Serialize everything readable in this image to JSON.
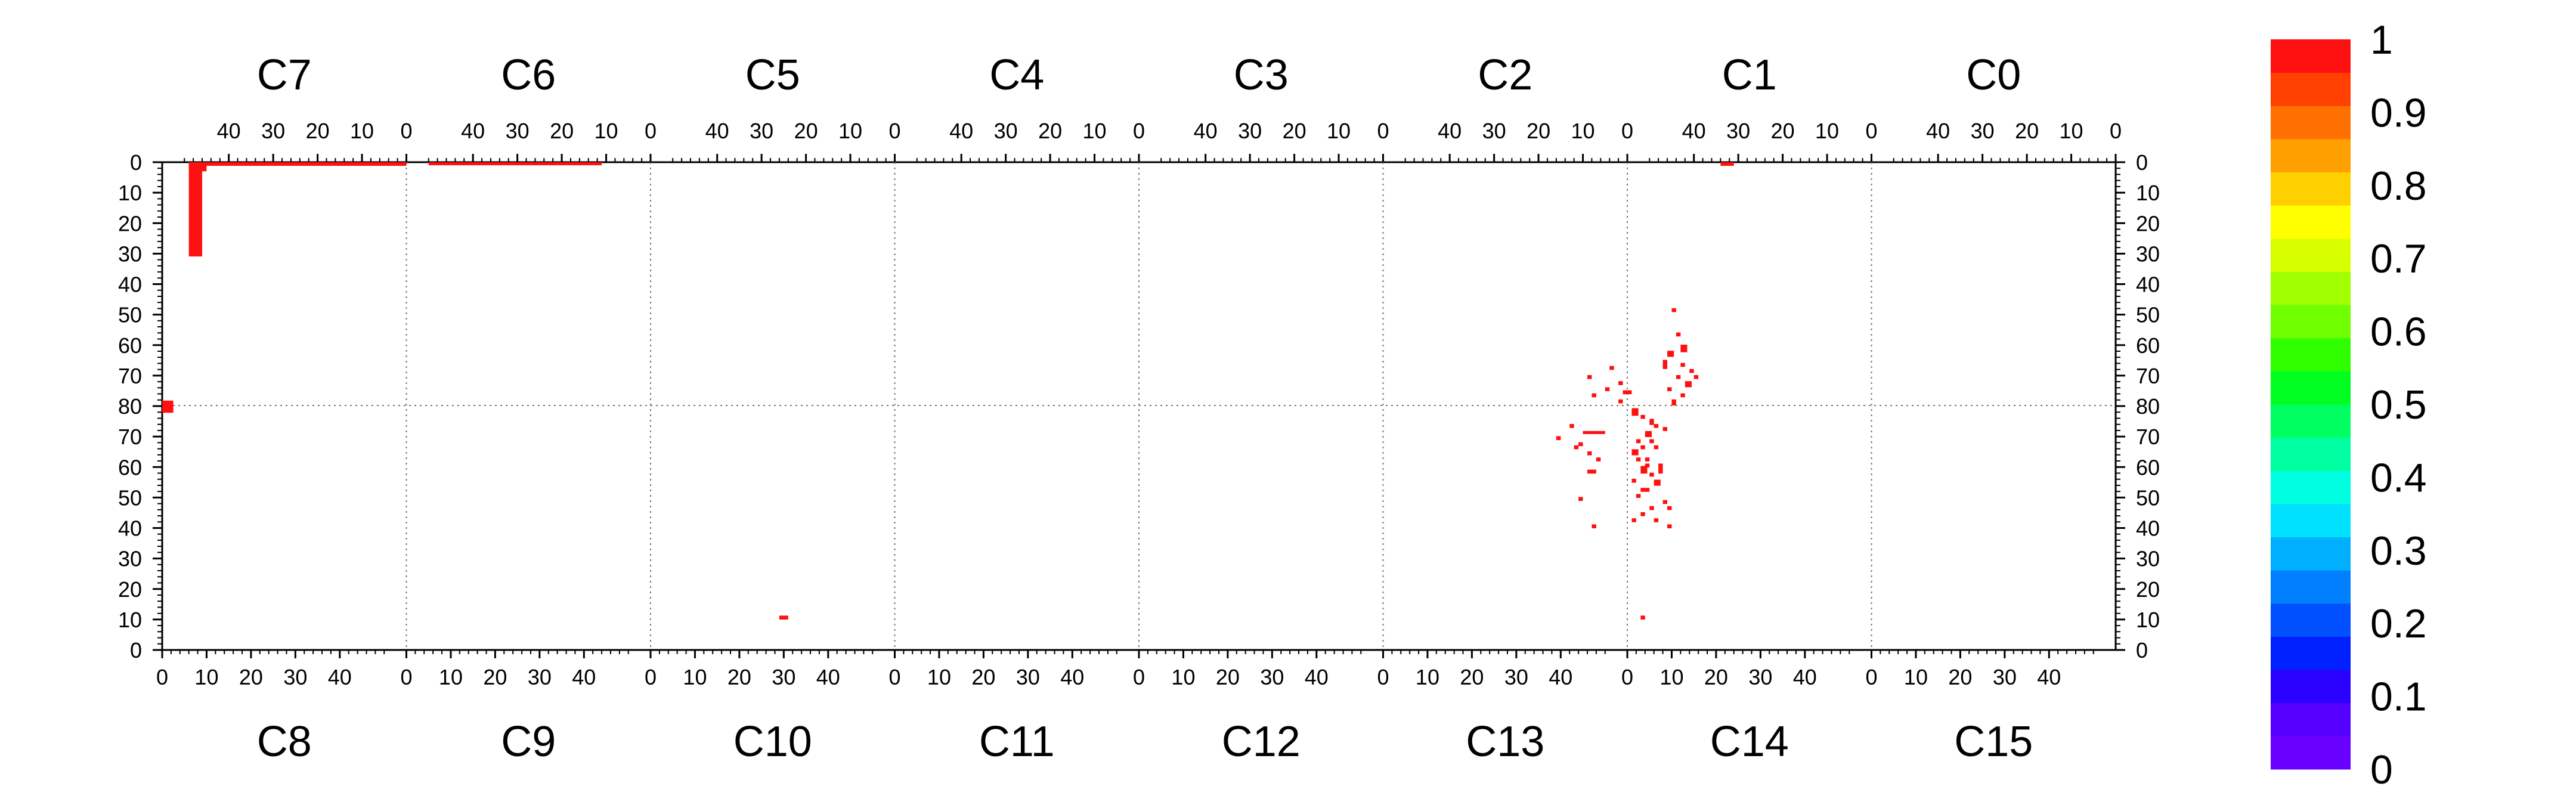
{
  "chart_data": {
    "type": "heatmap",
    "title": "",
    "top_chip_labels": [
      "C7",
      "C6",
      "C5",
      "C4",
      "C3",
      "C2",
      "C1",
      "C0"
    ],
    "bottom_chip_labels": [
      "C8",
      "C9",
      "C10",
      "C11",
      "C12",
      "C13",
      "C14",
      "C15"
    ],
    "top_x_tick_labels": [
      "40",
      "30",
      "20",
      "10",
      "0"
    ],
    "bottom_x_tick_labels": [
      "0",
      "10",
      "20",
      "30",
      "40"
    ],
    "y_tick_labels_left": [
      "0",
      "10",
      "20",
      "30",
      "40",
      "50",
      "60",
      "70",
      "80",
      "70",
      "60",
      "50",
      "40",
      "30",
      "20",
      "10",
      "0"
    ],
    "y_tick_labels_right": [
      "0",
      "10",
      "20",
      "30",
      "40",
      "50",
      "60",
      "70",
      "80",
      "70",
      "60",
      "50",
      "40",
      "30",
      "20",
      "10",
      "0"
    ],
    "colorbar": {
      "ticks": [
        "0",
        "0.1",
        "0.2",
        "0.3",
        "0.4",
        "0.5",
        "0.6",
        "0.7",
        "0.8",
        "0.9",
        "1"
      ],
      "colors": [
        "#6a00ff",
        "#5500ff",
        "#2a00ff",
        "#0020ff",
        "#0050ff",
        "#0080ff",
        "#00b0ff",
        "#00e0ff",
        "#00ffe0",
        "#00ffa0",
        "#00ff60",
        "#00ff20",
        "#30ff00",
        "#70ff00",
        "#a0ff00",
        "#d8ff00",
        "#ffff00",
        "#ffd000",
        "#ffa000",
        "#ff7000",
        "#ff4000",
        "#ff1010"
      ]
    },
    "hit_color": "#ff1010",
    "pixels_note_units": "chip column (0-50), row (0-80, 0 at outer edge)",
    "hits": [
      {
        "chip": "C7",
        "col": 49,
        "row": 0,
        "w": 49,
        "h": 1.2
      },
      {
        "chip": "C6",
        "col": 50,
        "row": 0,
        "w": 37,
        "h": 1.0
      },
      {
        "chip": "C6",
        "col": 13,
        "row": 0,
        "w": 2,
        "h": 1.0
      },
      {
        "chip": "C7",
        "col": 49,
        "row": 0,
        "w": 3,
        "h": 31
      },
      {
        "chip": "C7",
        "col": 47,
        "row": 1,
        "w": 2,
        "h": 2
      },
      {
        "chip": "C8",
        "col": 0,
        "row": 78,
        "w": 2.5,
        "h": 4
      },
      {
        "chip": "C1",
        "col": 34,
        "row": 0,
        "w": 3,
        "h": 1.2
      },
      {
        "chip": "C10",
        "col": 29,
        "row": 10,
        "w": 2,
        "h": 1.3
      },
      {
        "chip": "C14",
        "col": 3,
        "row": 10,
        "w": 1,
        "h": 1.3
      },
      {
        "chip": "C1",
        "col": 45,
        "row": 48,
        "w": 1,
        "h": 1.3
      },
      {
        "chip": "C1",
        "col": 44,
        "row": 56,
        "w": 1,
        "h": 1.3
      },
      {
        "chip": "C1",
        "col": 43,
        "row": 60,
        "w": 1.5,
        "h": 2.5
      },
      {
        "chip": "C1",
        "col": 46,
        "row": 62,
        "w": 1.5,
        "h": 2
      },
      {
        "chip": "C1",
        "col": 43,
        "row": 66,
        "w": 1,
        "h": 1.3
      },
      {
        "chip": "C1",
        "col": 47,
        "row": 65,
        "w": 1,
        "h": 3
      },
      {
        "chip": "C1",
        "col": 41,
        "row": 68,
        "w": 1,
        "h": 1.3
      },
      {
        "chip": "C1",
        "col": 44,
        "row": 70,
        "w": 1,
        "h": 1.3
      },
      {
        "chip": "C1",
        "col": 42,
        "row": 72,
        "w": 1.5,
        "h": 2
      },
      {
        "chip": "C1",
        "col": 46,
        "row": 74,
        "w": 1,
        "h": 1.3
      },
      {
        "chip": "C1",
        "col": 43,
        "row": 76,
        "w": 1,
        "h": 1.3
      },
      {
        "chip": "C1",
        "col": 45,
        "row": 78,
        "w": 1,
        "h": 2
      },
      {
        "chip": "C1",
        "col": 40,
        "row": 70,
        "w": 1,
        "h": 1.3
      },
      {
        "chip": "C2",
        "col": 4,
        "row": 67,
        "w": 1,
        "h": 1.3
      },
      {
        "chip": "C2",
        "col": 1,
        "row": 75,
        "w": 2,
        "h": 1.3
      },
      {
        "chip": "C2",
        "col": 2,
        "row": 78,
        "w": 1,
        "h": 1.3
      },
      {
        "chip": "C2",
        "col": 9,
        "row": 70,
        "w": 1,
        "h": 1.3
      },
      {
        "chip": "C2",
        "col": 5,
        "row": 74,
        "w": 1,
        "h": 1.3
      },
      {
        "chip": "C2",
        "col": 8,
        "row": 76,
        "w": 1,
        "h": 1.3
      },
      {
        "chip": "C2",
        "col": 2,
        "row": 72,
        "w": 1,
        "h": 1.3
      },
      {
        "chip": "C14",
        "col": 1,
        "row": 77,
        "w": 1.5,
        "h": 2.5
      },
      {
        "chip": "C14",
        "col": 3,
        "row": 76,
        "w": 1,
        "h": 1.3
      },
      {
        "chip": "C14",
        "col": 5,
        "row": 74,
        "w": 1,
        "h": 2
      },
      {
        "chip": "C14",
        "col": 8,
        "row": 72,
        "w": 1,
        "h": 1.3
      },
      {
        "chip": "C14",
        "col": 4,
        "row": 70,
        "w": 1.5,
        "h": 2
      },
      {
        "chip": "C14",
        "col": 2,
        "row": 68,
        "w": 1,
        "h": 1.3
      },
      {
        "chip": "C14",
        "col": 6,
        "row": 66,
        "w": 1,
        "h": 1.3
      },
      {
        "chip": "C14",
        "col": 1,
        "row": 64,
        "w": 1.5,
        "h": 2
      },
      {
        "chip": "C14",
        "col": 4,
        "row": 62,
        "w": 1,
        "h": 1.3
      },
      {
        "chip": "C14",
        "col": 7,
        "row": 60,
        "w": 1,
        "h": 1.3
      },
      {
        "chip": "C14",
        "col": 3,
        "row": 58,
        "w": 1.5,
        "h": 2.5
      },
      {
        "chip": "C14",
        "col": 5,
        "row": 57,
        "w": 1,
        "h": 1.3
      },
      {
        "chip": "C14",
        "col": 1,
        "row": 55,
        "w": 1,
        "h": 1.3
      },
      {
        "chip": "C14",
        "col": 6,
        "row": 54,
        "w": 1.5,
        "h": 2
      },
      {
        "chip": "C14",
        "col": 4,
        "row": 52,
        "w": 1,
        "h": 1.3
      },
      {
        "chip": "C14",
        "col": 2,
        "row": 50,
        "w": 1,
        "h": 1.3
      },
      {
        "chip": "C14",
        "col": 8,
        "row": 48,
        "w": 1,
        "h": 1.3
      },
      {
        "chip": "C14",
        "col": 5,
        "row": 46,
        "w": 1,
        "h": 1.3
      },
      {
        "chip": "C14",
        "col": 3,
        "row": 44,
        "w": 1,
        "h": 1.3
      },
      {
        "chip": "C14",
        "col": 6,
        "row": 42,
        "w": 1,
        "h": 1.3
      },
      {
        "chip": "C14",
        "col": 9,
        "row": 40,
        "w": 1,
        "h": 1.3
      },
      {
        "chip": "C14",
        "col": 1,
        "row": 42,
        "w": 1,
        "h": 1.3
      },
      {
        "chip": "C14",
        "col": 4,
        "row": 60,
        "w": 1,
        "h": 1.3
      },
      {
        "chip": "C14",
        "col": 7,
        "row": 58,
        "w": 1,
        "h": 2
      },
      {
        "chip": "C14",
        "col": 3,
        "row": 66,
        "w": 1,
        "h": 1.3
      },
      {
        "chip": "C14",
        "col": 6,
        "row": 73,
        "w": 1,
        "h": 1.3
      },
      {
        "chip": "C14",
        "col": 2,
        "row": 62,
        "w": 1,
        "h": 1.3
      },
      {
        "chip": "C14",
        "col": 5,
        "row": 68,
        "w": 1,
        "h": 1.3
      },
      {
        "chip": "C14",
        "col": 9,
        "row": 46,
        "w": 1,
        "h": 1.3
      },
      {
        "chip": "C14",
        "col": 3,
        "row": 52,
        "w": 1,
        "h": 1.3
      },
      {
        "chip": "C13",
        "col": 42,
        "row": 73,
        "w": 1,
        "h": 1.3
      },
      {
        "chip": "C13",
        "col": 45,
        "row": 71,
        "w": 5,
        "h": 1.0
      },
      {
        "chip": "C13",
        "col": 44,
        "row": 67,
        "w": 1,
        "h": 1.3
      },
      {
        "chip": "C13",
        "col": 46,
        "row": 64,
        "w": 1,
        "h": 1.3
      },
      {
        "chip": "C13",
        "col": 43,
        "row": 66,
        "w": 1,
        "h": 1.3
      },
      {
        "chip": "C13",
        "col": 48,
        "row": 62,
        "w": 1,
        "h": 1.3
      },
      {
        "chip": "C13",
        "col": 46,
        "row": 58,
        "w": 2,
        "h": 1.3
      },
      {
        "chip": "C13",
        "col": 44,
        "row": 49,
        "w": 1,
        "h": 1.3
      },
      {
        "chip": "C13",
        "col": 47,
        "row": 40,
        "w": 1,
        "h": 1.3
      },
      {
        "chip": "C13",
        "col": 39,
        "row": 69,
        "w": 1,
        "h": 1.3
      }
    ]
  }
}
